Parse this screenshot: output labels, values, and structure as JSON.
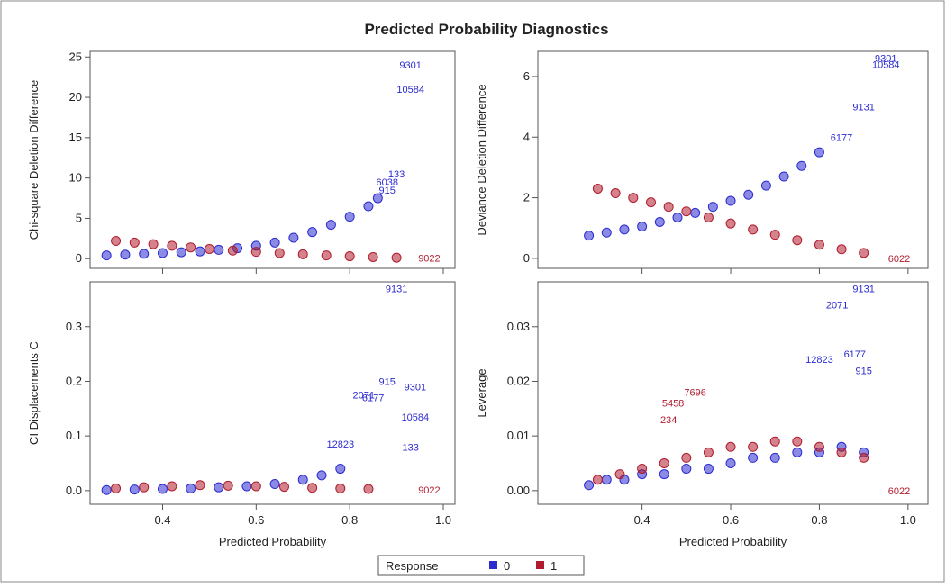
{
  "title": "Predicted Probability Diagnostics",
  "legend": {
    "title": "Response",
    "entries": [
      {
        "name": "0",
        "color": "#2b2bd0"
      },
      {
        "name": "1",
        "color": "#b01c2e"
      }
    ]
  },
  "chart_data": [
    {
      "type": "scatter",
      "ylabel": "Chi-square Deletion Difference",
      "show_xtick_labels": false,
      "xlim": [
        0.245,
        1.025
      ],
      "xticks": [
        0.4,
        0.6,
        0.8,
        1
      ],
      "ylim": [
        -1.2,
        25.7
      ],
      "yticks": [
        0,
        5,
        10,
        15,
        20,
        25
      ],
      "series": [
        {
          "color": "#2b2bd0",
          "x": [
            0.28,
            0.32,
            0.36,
            0.4,
            0.44,
            0.48,
            0.52,
            0.56,
            0.6,
            0.64,
            0.68,
            0.72,
            0.76,
            0.8,
            0.84,
            0.86,
            0.93,
            0.93,
            0.9,
            0.88,
            0.88
          ],
          "values": [
            0.4,
            0.5,
            0.6,
            0.7,
            0.8,
            0.9,
            1.1,
            1.3,
            1.6,
            2,
            2.6,
            3.3,
            4.2,
            5.2,
            6.5,
            7.5,
            24,
            21,
            10.5,
            9.5,
            8.5
          ],
          "point_labels": [
            null,
            null,
            null,
            null,
            null,
            null,
            null,
            null,
            null,
            null,
            null,
            null,
            null,
            null,
            null,
            null,
            "9301",
            "10584",
            "133",
            "6038",
            "915"
          ]
        },
        {
          "color": "#b01c2e",
          "x": [
            0.3,
            0.34,
            0.38,
            0.42,
            0.46,
            0.5,
            0.55,
            0.6,
            0.65,
            0.7,
            0.75,
            0.8,
            0.85,
            0.9,
            0.97
          ],
          "values": [
            2.2,
            2,
            1.8,
            1.6,
            1.4,
            1.2,
            1,
            0.85,
            0.7,
            0.55,
            0.4,
            0.3,
            0.2,
            0.12,
            0.1
          ],
          "point_labels": [
            null,
            null,
            null,
            null,
            null,
            null,
            null,
            null,
            null,
            null,
            null,
            null,
            null,
            null,
            "9022"
          ]
        }
      ]
    },
    {
      "type": "scatter",
      "ylabel": "Deviance Deletion Difference",
      "show_xtick_labels": false,
      "xlim": [
        0.165,
        1.045
      ],
      "xticks": [
        0.4,
        0.6,
        0.8,
        1
      ],
      "ylim": [
        -0.33,
        6.83
      ],
      "yticks": [
        0,
        2,
        4,
        6
      ],
      "series": [
        {
          "color": "#2b2bd0",
          "x": [
            0.28,
            0.32,
            0.36,
            0.4,
            0.44,
            0.48,
            0.52,
            0.56,
            0.6,
            0.64,
            0.68,
            0.72,
            0.76,
            0.8,
            0.95,
            0.95,
            0.9,
            0.85
          ],
          "values": [
            0.75,
            0.85,
            0.95,
            1.05,
            1.2,
            1.35,
            1.5,
            1.7,
            1.9,
            2.1,
            2.4,
            2.7,
            3.05,
            3.5,
            6.6,
            6.4,
            5,
            4
          ],
          "point_labels": [
            null,
            null,
            null,
            null,
            null,
            null,
            null,
            null,
            null,
            null,
            null,
            null,
            null,
            null,
            "9301",
            "10584",
            "9131",
            "6177"
          ]
        },
        {
          "color": "#b01c2e",
          "x": [
            0.3,
            0.34,
            0.38,
            0.42,
            0.46,
            0.5,
            0.55,
            0.6,
            0.65,
            0.7,
            0.75,
            0.8,
            0.85,
            0.9,
            0.98
          ],
          "values": [
            2.3,
            2.15,
            2,
            1.85,
            1.7,
            1.55,
            1.35,
            1.15,
            0.95,
            0.78,
            0.6,
            0.45,
            0.3,
            0.18,
            0
          ],
          "point_labels": [
            null,
            null,
            null,
            null,
            null,
            null,
            null,
            null,
            null,
            null,
            null,
            null,
            null,
            null,
            "6022"
          ]
        }
      ]
    },
    {
      "type": "scatter",
      "ylabel": "CI Displacements C",
      "xlabel": "Predicted Probability",
      "show_xtick_labels": true,
      "xlim": [
        0.245,
        1.025
      ],
      "xticks": [
        0.4,
        0.6,
        {
          "value": 0.8,
          "label": "0.8"
        },
        {
          "value": 1,
          "label": "1.0"
        }
      ],
      "ylim": [
        -0.025,
        0.382
      ],
      "yticks": [
        {
          "value": 0,
          "label": "0.0"
        },
        0.1,
        0.2,
        0.3
      ],
      "series": [
        {
          "color": "#2b2bd0",
          "x": [
            0.28,
            0.34,
            0.4,
            0.46,
            0.52,
            0.58,
            0.64,
            0.7,
            0.74,
            0.78,
            0.9,
            0.88,
            0.94,
            0.83,
            0.85,
            0.94,
            0.78,
            0.93
          ],
          "values": [
            0.001,
            0.002,
            0.003,
            0.004,
            0.006,
            0.008,
            0.012,
            0.02,
            0.028,
            0.04,
            0.37,
            0.2,
            0.19,
            0.175,
            0.17,
            0.135,
            0.085,
            0.08
          ],
          "point_labels": [
            null,
            null,
            null,
            null,
            null,
            null,
            null,
            null,
            null,
            null,
            "9131",
            "915",
            "9301",
            "2071",
            "6177",
            "10584",
            "12823",
            "133"
          ]
        },
        {
          "color": "#b01c2e",
          "x": [
            0.3,
            0.36,
            0.42,
            0.48,
            0.54,
            0.6,
            0.66,
            0.72,
            0.78,
            0.84,
            0.97
          ],
          "values": [
            0.004,
            0.006,
            0.008,
            0.01,
            0.009,
            0.008,
            0.007,
            0.005,
            0.004,
            0.003,
            0.001
          ],
          "point_labels": [
            null,
            null,
            null,
            null,
            null,
            null,
            null,
            null,
            null,
            null,
            "9022"
          ]
        }
      ]
    },
    {
      "type": "scatter",
      "ylabel": "Leverage",
      "xlabel": "Predicted Probability",
      "show_xtick_labels": true,
      "xlim": [
        0.165,
        1.045
      ],
      "xticks": [
        0.4,
        0.6,
        0.8,
        {
          "value": 1,
          "label": "1.0"
        }
      ],
      "ylim": [
        -0.0025,
        0.0382
      ],
      "yticks": [
        {
          "value": 0,
          "label": "0.00"
        },
        {
          "value": 0.01,
          "label": "0.01"
        },
        {
          "value": 0.02,
          "label": "0.02"
        },
        {
          "value": 0.03,
          "label": "0.03"
        }
      ],
      "series": [
        {
          "color": "#2b2bd0",
          "x": [
            0.28,
            0.32,
            0.36,
            0.4,
            0.45,
            0.5,
            0.55,
            0.6,
            0.65,
            0.7,
            0.75,
            0.8,
            0.85,
            0.9,
            0.9,
            0.84,
            0.88,
            0.8,
            0.9
          ],
          "values": [
            0.001,
            0.002,
            0.002,
            0.003,
            0.003,
            0.004,
            0.004,
            0.005,
            0.006,
            0.006,
            0.007,
            0.007,
            0.008,
            0.007,
            0.037,
            0.034,
            0.025,
            0.024,
            0.022
          ],
          "point_labels": [
            null,
            null,
            null,
            null,
            null,
            null,
            null,
            null,
            null,
            null,
            null,
            null,
            null,
            null,
            "9131",
            "2071",
            "6177",
            "12823",
            "915"
          ]
        },
        {
          "color": "#b01c2e",
          "x": [
            0.3,
            0.35,
            0.4,
            0.45,
            0.5,
            0.55,
            0.6,
            0.65,
            0.7,
            0.75,
            0.8,
            0.85,
            0.9,
            0.52,
            0.47,
            0.46,
            0.98
          ],
          "values": [
            0.002,
            0.003,
            0.004,
            0.005,
            0.006,
            0.007,
            0.008,
            0.008,
            0.009,
            0.009,
            0.008,
            0.007,
            0.006,
            0.018,
            0.016,
            0.013,
            0
          ],
          "point_labels": [
            null,
            null,
            null,
            null,
            null,
            null,
            null,
            null,
            null,
            null,
            null,
            null,
            null,
            "7696",
            "5458",
            "234",
            "6022"
          ]
        }
      ]
    }
  ]
}
